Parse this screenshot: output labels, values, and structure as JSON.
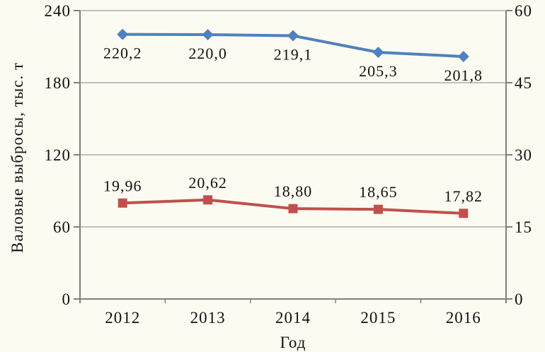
{
  "chart": {
    "background": "#fcfbf2",
    "text_color": "#111111",
    "grid_color": "#9b9b9b",
    "axis_color": "#7f7f7f"
  },
  "chart_data": {
    "type": "line",
    "title": "",
    "xlabel": "Год",
    "ylabel_left": "Валовые выбросы, тыс. т",
    "categories": [
      "2012",
      "2013",
      "2014",
      "2015",
      "2016"
    ],
    "series": [
      {
        "name": "gross-emissions-left-axis",
        "axis": "left",
        "color": "#4f81bd",
        "marker": "diamond",
        "values": [
          220.2,
          220.0,
          219.1,
          205.3,
          201.8
        ],
        "point_labels": [
          "220,2",
          "220,0",
          "219,1",
          "205,3",
          "201,8"
        ],
        "label_position": "below"
      },
      {
        "name": "emissions-right-axis",
        "axis": "right",
        "color": "#c0504d",
        "marker": "square",
        "values": [
          19.96,
          20.62,
          18.8,
          18.65,
          17.82
        ],
        "point_labels": [
          "19,96",
          "20,62",
          "18,80",
          "18,65",
          "17,82"
        ],
        "label_position": "above"
      }
    ],
    "left_axis": {
      "min": 0,
      "max": 240,
      "ticks": [
        0,
        60,
        120,
        180,
        240
      ]
    },
    "right_axis": {
      "min": 0,
      "max": 60,
      "ticks": [
        0,
        15,
        30,
        45,
        60
      ]
    },
    "grid": true,
    "legend": false
  }
}
